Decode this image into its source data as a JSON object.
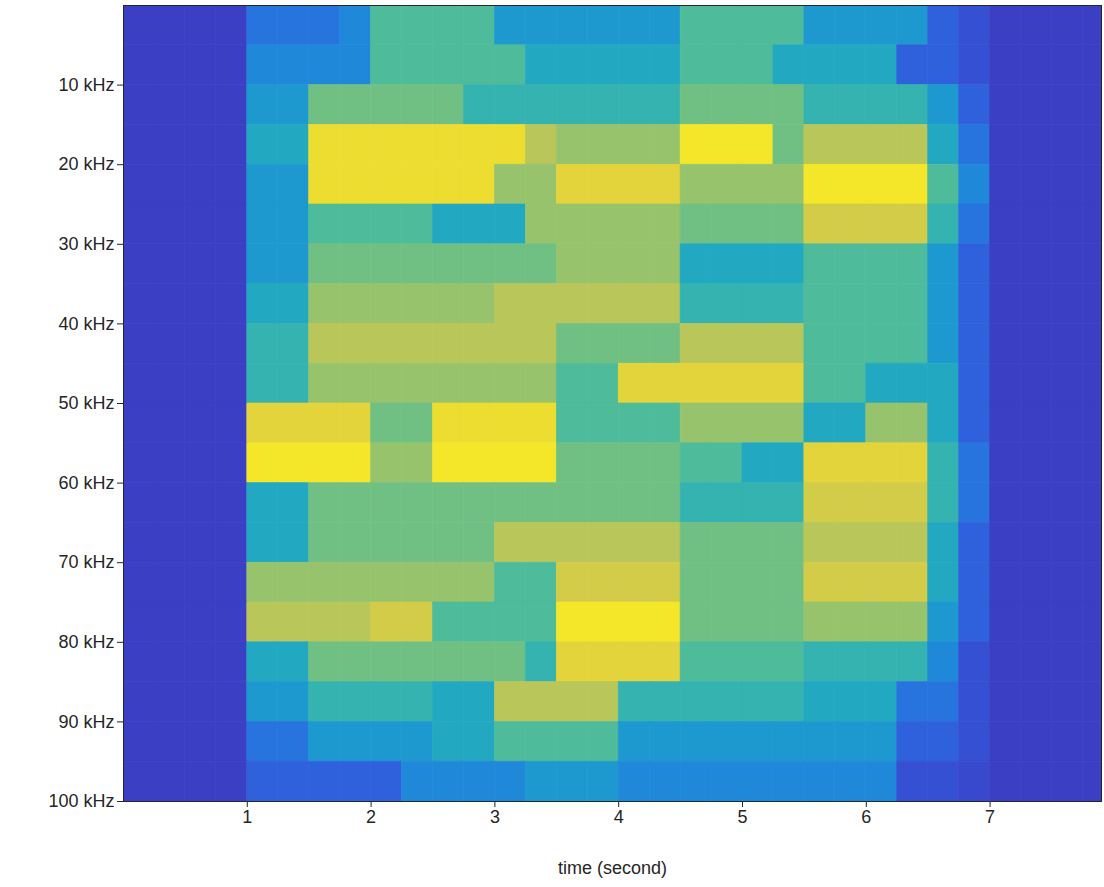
{
  "chart_data": {
    "type": "heatmap",
    "xlabel": "time (second)",
    "xlim": [
      0,
      7.9
    ],
    "ylim": [
      0,
      100
    ],
    "xticks": [
      1,
      2,
      3,
      4,
      5,
      6,
      7
    ],
    "yticks": [
      {
        "value": 10,
        "label": "10 kHz"
      },
      {
        "value": 20,
        "label": "20 kHz"
      },
      {
        "value": 30,
        "label": "30 kHz"
      },
      {
        "value": 40,
        "label": "40 kHz"
      },
      {
        "value": 50,
        "label": "50 kHz"
      },
      {
        "value": 60,
        "label": "60 kHz"
      },
      {
        "value": 70,
        "label": "70 kHz"
      },
      {
        "value": 80,
        "label": "80 kHz"
      },
      {
        "value": 90,
        "label": "90 kHz"
      },
      {
        "value": 100,
        "label": "100 kHz"
      }
    ],
    "x_bins": [
      0,
      0.25,
      0.5,
      0.75,
      1,
      1.25,
      1.5,
      1.75,
      2,
      2.25,
      2.5,
      2.75,
      3,
      3.25,
      3.5,
      3.75,
      4,
      4.25,
      4.5,
      4.75,
      5,
      5.25,
      5.5,
      5.75,
      6,
      6.25,
      6.5,
      6.75,
      7,
      7.25,
      7.5,
      7.75,
      8
    ],
    "y_bins": [
      0,
      5,
      10,
      15,
      20,
      25,
      30,
      35,
      40,
      45,
      50,
      55,
      60,
      65,
      70,
      75,
      80,
      85,
      90,
      95,
      100
    ],
    "cells": [
      [
        0.05,
        0.05,
        0.05,
        0.05,
        0.2,
        0.2,
        0.2,
        0.25,
        0.45,
        0.45,
        0.45,
        0.45,
        0.3,
        0.3,
        0.3,
        0.3,
        0.3,
        0.3,
        0.45,
        0.45,
        0.45,
        0.45,
        0.3,
        0.3,
        0.3,
        0.3,
        0.15,
        0.1,
        0.05,
        0.05,
        0.05,
        0.05
      ],
      [
        0.05,
        0.05,
        0.05,
        0.05,
        0.25,
        0.25,
        0.25,
        0.25,
        0.45,
        0.45,
        0.45,
        0.45,
        0.45,
        0.35,
        0.35,
        0.35,
        0.35,
        0.35,
        0.45,
        0.45,
        0.45,
        0.35,
        0.35,
        0.35,
        0.35,
        0.15,
        0.15,
        0.1,
        0.05,
        0.05,
        0.05,
        0.05
      ],
      [
        0.05,
        0.05,
        0.05,
        0.05,
        0.3,
        0.3,
        0.5,
        0.5,
        0.5,
        0.5,
        0.5,
        0.4,
        0.4,
        0.4,
        0.4,
        0.4,
        0.4,
        0.4,
        0.5,
        0.5,
        0.5,
        0.5,
        0.4,
        0.4,
        0.4,
        0.4,
        0.3,
        0.15,
        0.05,
        0.05,
        0.05,
        0.05
      ],
      [
        0.05,
        0.05,
        0.05,
        0.05,
        0.35,
        0.35,
        0.75,
        0.75,
        0.75,
        0.75,
        0.75,
        0.75,
        0.75,
        0.6,
        0.55,
        0.55,
        0.55,
        0.55,
        0.8,
        0.8,
        0.8,
        0.5,
        0.6,
        0.6,
        0.6,
        0.6,
        0.35,
        0.2,
        0.05,
        0.05,
        0.05,
        0.05
      ],
      [
        0.05,
        0.05,
        0.05,
        0.05,
        0.3,
        0.3,
        0.75,
        0.75,
        0.75,
        0.75,
        0.75,
        0.75,
        0.55,
        0.55,
        0.7,
        0.7,
        0.7,
        0.7,
        0.55,
        0.55,
        0.55,
        0.55,
        0.8,
        0.8,
        0.8,
        0.8,
        0.45,
        0.25,
        0.05,
        0.05,
        0.05,
        0.05
      ],
      [
        0.05,
        0.05,
        0.05,
        0.05,
        0.3,
        0.3,
        0.45,
        0.45,
        0.45,
        0.45,
        0.35,
        0.35,
        0.35,
        0.55,
        0.55,
        0.55,
        0.55,
        0.55,
        0.5,
        0.5,
        0.5,
        0.5,
        0.65,
        0.65,
        0.65,
        0.65,
        0.4,
        0.2,
        0.05,
        0.05,
        0.05,
        0.05
      ],
      [
        0.05,
        0.05,
        0.05,
        0.05,
        0.3,
        0.3,
        0.5,
        0.5,
        0.5,
        0.5,
        0.5,
        0.5,
        0.5,
        0.5,
        0.55,
        0.55,
        0.55,
        0.55,
        0.35,
        0.35,
        0.35,
        0.35,
        0.45,
        0.45,
        0.45,
        0.45,
        0.3,
        0.15,
        0.05,
        0.05,
        0.05,
        0.05
      ],
      [
        0.05,
        0.05,
        0.05,
        0.05,
        0.35,
        0.35,
        0.55,
        0.55,
        0.55,
        0.55,
        0.55,
        0.55,
        0.6,
        0.6,
        0.6,
        0.6,
        0.6,
        0.6,
        0.4,
        0.4,
        0.4,
        0.4,
        0.45,
        0.45,
        0.45,
        0.45,
        0.3,
        0.15,
        0.05,
        0.05,
        0.05,
        0.05
      ],
      [
        0.05,
        0.05,
        0.05,
        0.05,
        0.4,
        0.4,
        0.6,
        0.6,
        0.6,
        0.6,
        0.6,
        0.6,
        0.6,
        0.6,
        0.5,
        0.5,
        0.5,
        0.5,
        0.6,
        0.6,
        0.6,
        0.6,
        0.45,
        0.45,
        0.45,
        0.45,
        0.3,
        0.15,
        0.05,
        0.05,
        0.05,
        0.05
      ],
      [
        0.05,
        0.05,
        0.05,
        0.05,
        0.4,
        0.4,
        0.55,
        0.55,
        0.55,
        0.55,
        0.55,
        0.55,
        0.55,
        0.55,
        0.45,
        0.45,
        0.7,
        0.7,
        0.7,
        0.7,
        0.7,
        0.7,
        0.45,
        0.45,
        0.35,
        0.35,
        0.35,
        0.15,
        0.05,
        0.05,
        0.05,
        0.05
      ],
      [
        0.05,
        0.05,
        0.05,
        0.05,
        0.7,
        0.7,
        0.7,
        0.7,
        0.5,
        0.5,
        0.75,
        0.75,
        0.75,
        0.75,
        0.45,
        0.45,
        0.45,
        0.45,
        0.55,
        0.55,
        0.55,
        0.55,
        0.35,
        0.35,
        0.55,
        0.55,
        0.35,
        0.15,
        0.05,
        0.05,
        0.05,
        0.05
      ],
      [
        0.05,
        0.05,
        0.05,
        0.05,
        0.8,
        0.8,
        0.8,
        0.8,
        0.55,
        0.55,
        0.8,
        0.8,
        0.8,
        0.8,
        0.5,
        0.5,
        0.5,
        0.5,
        0.45,
        0.45,
        0.35,
        0.35,
        0.7,
        0.7,
        0.7,
        0.7,
        0.4,
        0.2,
        0.05,
        0.05,
        0.05,
        0.05
      ],
      [
        0.05,
        0.05,
        0.05,
        0.05,
        0.35,
        0.35,
        0.5,
        0.5,
        0.5,
        0.5,
        0.5,
        0.5,
        0.5,
        0.5,
        0.5,
        0.5,
        0.5,
        0.5,
        0.4,
        0.4,
        0.4,
        0.4,
        0.65,
        0.65,
        0.65,
        0.65,
        0.4,
        0.2,
        0.05,
        0.05,
        0.05,
        0.05
      ],
      [
        0.05,
        0.05,
        0.05,
        0.05,
        0.35,
        0.35,
        0.5,
        0.5,
        0.5,
        0.5,
        0.5,
        0.5,
        0.6,
        0.6,
        0.6,
        0.6,
        0.6,
        0.6,
        0.5,
        0.5,
        0.5,
        0.5,
        0.6,
        0.6,
        0.6,
        0.6,
        0.35,
        0.15,
        0.05,
        0.05,
        0.05,
        0.05
      ],
      [
        0.05,
        0.05,
        0.05,
        0.05,
        0.55,
        0.55,
        0.55,
        0.55,
        0.55,
        0.55,
        0.55,
        0.55,
        0.45,
        0.45,
        0.65,
        0.65,
        0.65,
        0.65,
        0.5,
        0.5,
        0.5,
        0.5,
        0.65,
        0.65,
        0.65,
        0.65,
        0.35,
        0.15,
        0.05,
        0.05,
        0.05,
        0.05
      ],
      [
        0.05,
        0.05,
        0.05,
        0.05,
        0.6,
        0.6,
        0.6,
        0.6,
        0.65,
        0.65,
        0.45,
        0.45,
        0.45,
        0.45,
        0.8,
        0.8,
        0.8,
        0.8,
        0.5,
        0.5,
        0.5,
        0.5,
        0.55,
        0.55,
        0.55,
        0.55,
        0.3,
        0.15,
        0.05,
        0.05,
        0.05,
        0.05
      ],
      [
        0.05,
        0.05,
        0.05,
        0.05,
        0.35,
        0.35,
        0.5,
        0.5,
        0.5,
        0.5,
        0.5,
        0.5,
        0.5,
        0.4,
        0.7,
        0.7,
        0.7,
        0.7,
        0.45,
        0.45,
        0.45,
        0.45,
        0.4,
        0.4,
        0.4,
        0.4,
        0.25,
        0.1,
        0.05,
        0.05,
        0.05,
        0.05
      ],
      [
        0.05,
        0.05,
        0.05,
        0.05,
        0.3,
        0.3,
        0.4,
        0.4,
        0.4,
        0.4,
        0.35,
        0.35,
        0.6,
        0.6,
        0.6,
        0.6,
        0.4,
        0.4,
        0.4,
        0.4,
        0.4,
        0.4,
        0.35,
        0.35,
        0.35,
        0.2,
        0.2,
        0.1,
        0.05,
        0.05,
        0.05,
        0.05
      ],
      [
        0.05,
        0.05,
        0.05,
        0.05,
        0.2,
        0.2,
        0.3,
        0.3,
        0.3,
        0.3,
        0.35,
        0.35,
        0.45,
        0.45,
        0.45,
        0.45,
        0.3,
        0.3,
        0.3,
        0.3,
        0.3,
        0.3,
        0.3,
        0.3,
        0.3,
        0.15,
        0.15,
        0.1,
        0.05,
        0.05,
        0.05,
        0.05
      ],
      [
        0.05,
        0.05,
        0.05,
        0.05,
        0.15,
        0.15,
        0.15,
        0.15,
        0.15,
        0.25,
        0.25,
        0.25,
        0.25,
        0.3,
        0.3,
        0.3,
        0.25,
        0.25,
        0.25,
        0.25,
        0.25,
        0.25,
        0.25,
        0.25,
        0.25,
        0.1,
        0.1,
        0.08,
        0.05,
        0.05,
        0.05,
        0.05
      ]
    ]
  }
}
